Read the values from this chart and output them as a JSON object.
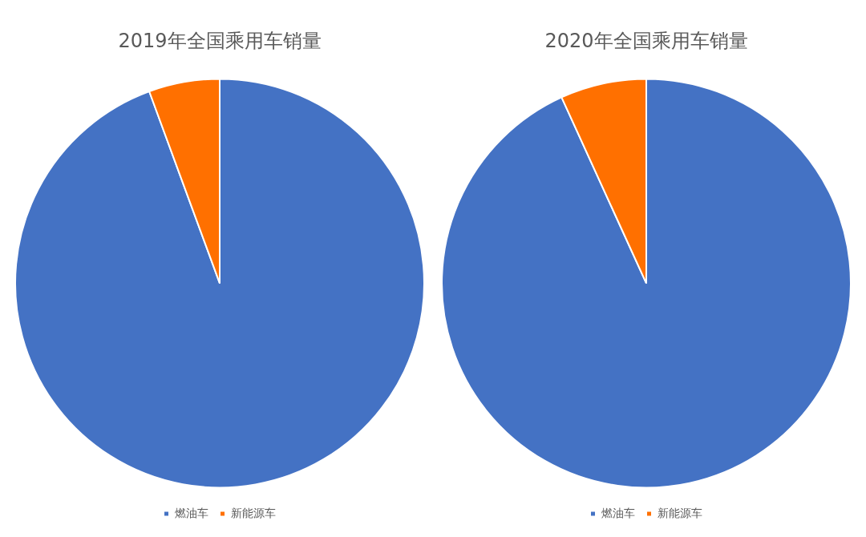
{
  "chart_data": [
    {
      "type": "pie",
      "title": "2019年全国乘用车销量",
      "categories": [
        "燃油车",
        "新能源车"
      ],
      "values": [
        94.4,
        5.6
      ],
      "colors": [
        "#4472c4",
        "#ff7000"
      ],
      "legend": "bottom"
    },
    {
      "type": "pie",
      "title": "2020年全国乘用车销量",
      "categories": [
        "燃油车",
        "新能源车"
      ],
      "values": [
        93.2,
        6.8
      ],
      "colors": [
        "#4472c4",
        "#ff7000"
      ],
      "legend": "bottom"
    }
  ]
}
